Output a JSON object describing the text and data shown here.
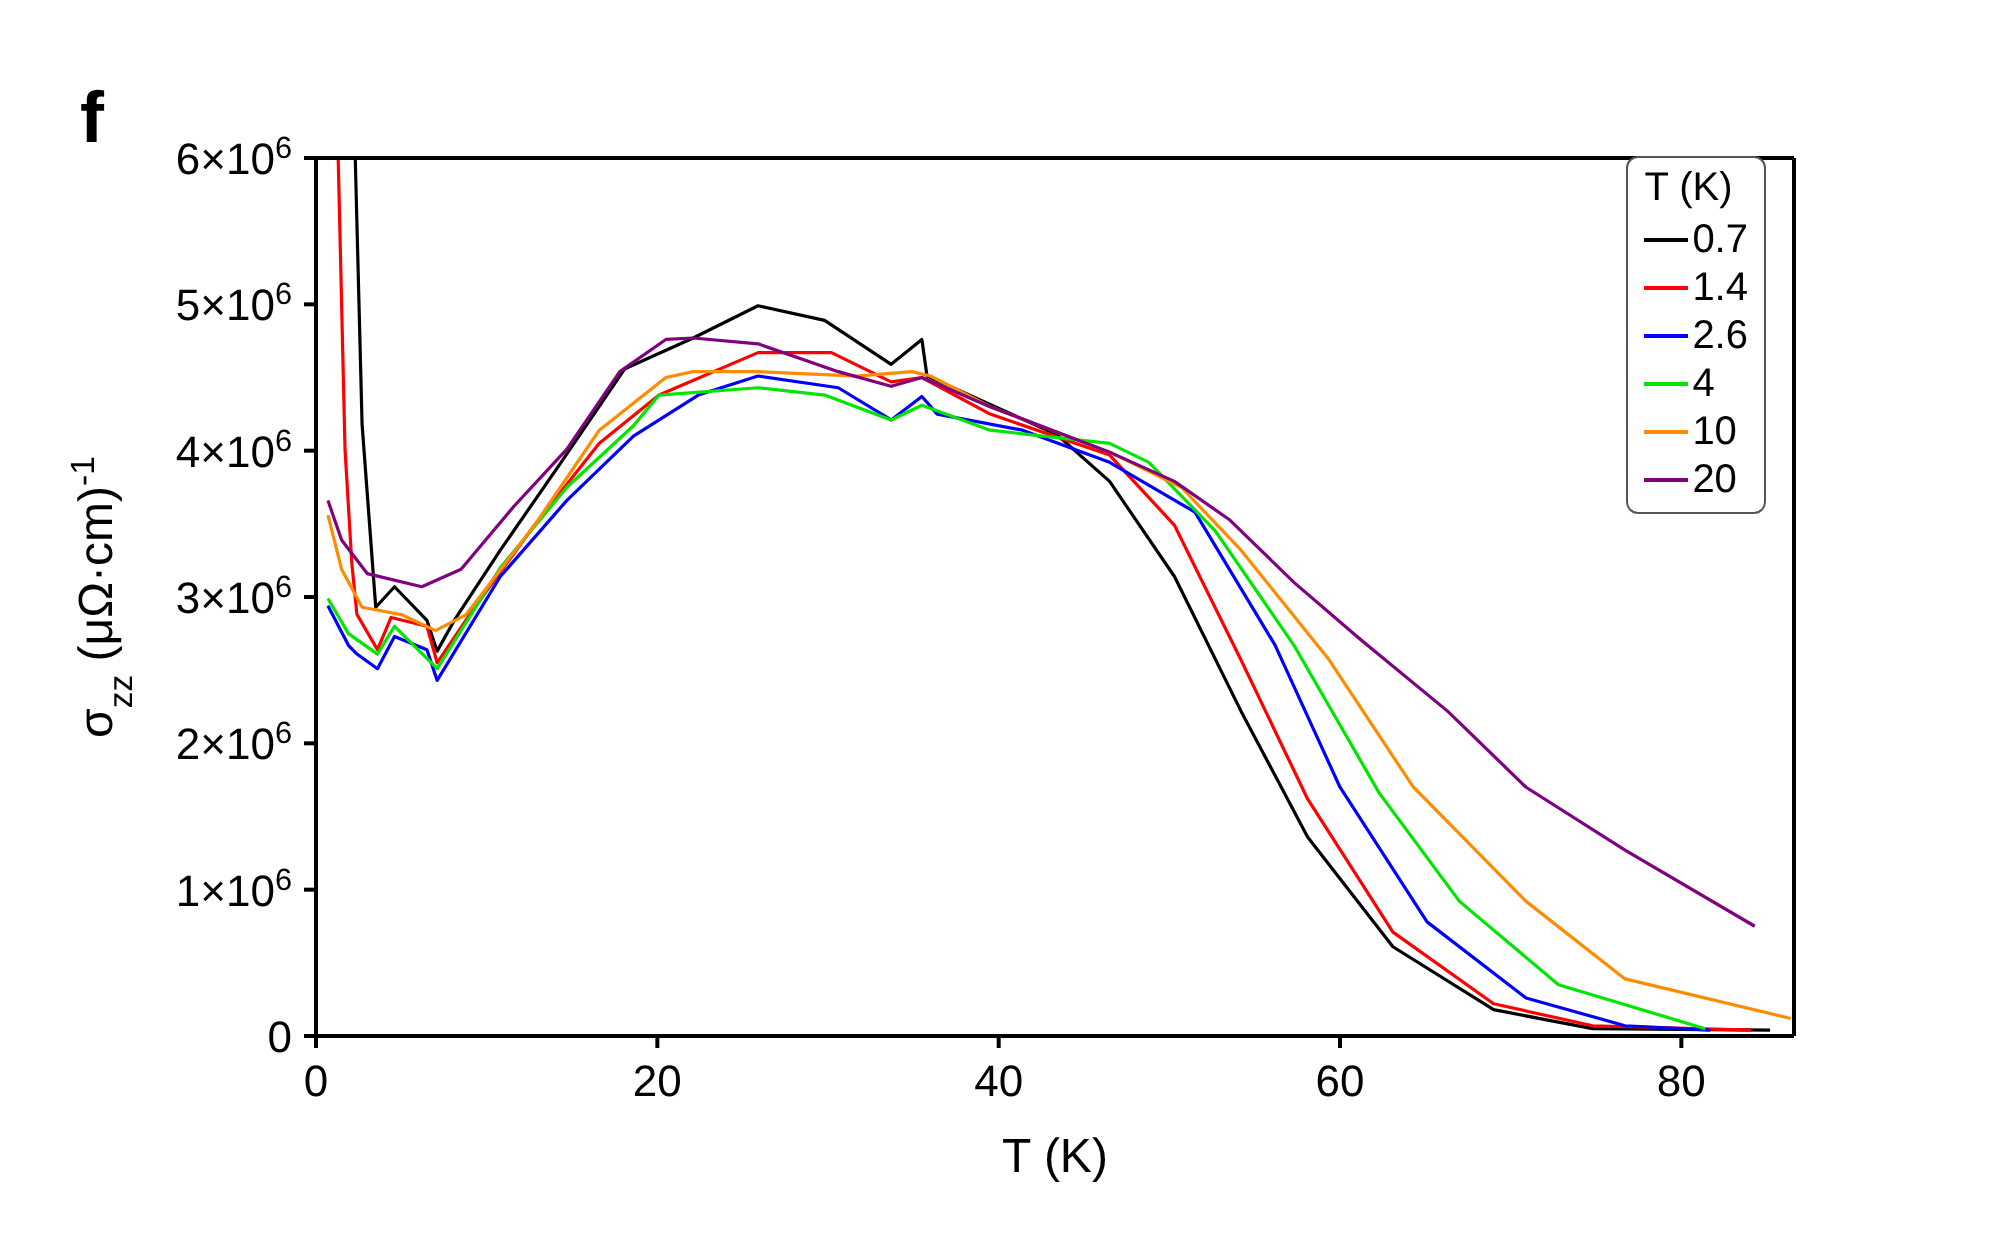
{
  "chart_data": {
    "type": "line",
    "title": "f",
    "xlabel": "T (K)",
    "ylabel": "σ$_{zz}$ (μΩ·cm)$^{-1}$",
    "legend_title": "T (K)",
    "legend": "top right",
    "xlim": [
      0,
      86.6
    ],
    "xticks": [
      0,
      20,
      40,
      60,
      80
    ],
    "ylim": [
      0,
      6000000
    ],
    "yticks": [
      0,
      {
        "value": 1000000,
        "label": "1×10$^{6}$"
      },
      {
        "value": 2000000,
        "label": "2×10$^{6}$"
      },
      {
        "value": 3000000,
        "label": "3×10$^{6}$"
      },
      {
        "value": 4000000,
        "label": "4×10$^{6}$"
      },
      {
        "value": 5000000,
        "label": "5×10$^{6}$"
      },
      {
        "value": 6000000,
        "label": "6×10$^{6}$"
      }
    ],
    "series": [
      {
        "name": "0.7",
        "color": "#000000",
        "x": [
          2.3,
          2.7,
          3.5,
          4.6,
          6.5,
          7.1,
          8.1,
          10.8,
          14.3,
          18.1,
          22.1,
          25.9,
          29.8,
          33.7,
          35.5,
          35.8,
          43.4,
          46.5,
          50.3,
          54.2,
          58.1,
          63.1,
          69,
          74.8,
          85.2
        ],
        "values": [
          6000000,
          4180000,
          2930000,
          3070000,
          2840000,
          2630000,
          2840000,
          3320000,
          3910000,
          4560000,
          4770000,
          4990000,
          4890000,
          4590000,
          4760000,
          4510000,
          4110000,
          3790000,
          3140000,
          2220000,
          1360000,
          610000,
          180000,
          50000,
          40000
        ]
      },
      {
        "name": "1.4",
        "color": "#ff0000",
        "x": [
          1.3,
          1.7,
          2.1,
          2.4,
          3.6,
          4.4,
          6.5,
          7.1,
          9.3,
          12.8,
          16.6,
          20.1,
          25.9,
          30.2,
          33.7,
          35.5,
          39.5,
          46.5,
          50.3,
          54.2,
          58.1,
          63.1,
          69,
          74.8,
          84.1
        ],
        "values": [
          6000000,
          4010000,
          3230000,
          2880000,
          2640000,
          2860000,
          2800000,
          2550000,
          2930000,
          3490000,
          4050000,
          4380000,
          4670000,
          4670000,
          4470000,
          4500000,
          4250000,
          3970000,
          3490000,
          2570000,
          1620000,
          710000,
          220000,
          70000,
          40000
        ]
      },
      {
        "name": "2.6",
        "color": "#0000ff",
        "x": [
          0.7,
          1.9,
          2.4,
          3.6,
          4.6,
          6.5,
          7.1,
          10.8,
          14.7,
          18.6,
          22.4,
          25.9,
          30.6,
          33.7,
          35.5,
          36.4,
          41.4,
          46.5,
          51.5,
          56.2,
          60,
          65.1,
          70.9,
          76.7,
          81.7
        ],
        "values": [
          2940000,
          2670000,
          2610000,
          2510000,
          2730000,
          2640000,
          2430000,
          3140000,
          3660000,
          4100000,
          4380000,
          4510000,
          4430000,
          4210000,
          4370000,
          4250000,
          4140000,
          3920000,
          3580000,
          2670000,
          1700000,
          780000,
          260000,
          70000,
          40000
        ]
      },
      {
        "name": "4",
        "color": "#00e600",
        "x": [
          0.7,
          1.9,
          3.6,
          4.6,
          7.1,
          10.8,
          14.7,
          18.6,
          20.1,
          25.9,
          29.8,
          33.7,
          35.5,
          39.5,
          46.5,
          48.8,
          52.7,
          57.3,
          62.3,
          67,
          72.8,
          81.4
        ],
        "values": [
          2990000,
          2750000,
          2610000,
          2800000,
          2510000,
          3200000,
          3750000,
          4170000,
          4380000,
          4430000,
          4380000,
          4210000,
          4310000,
          4140000,
          4050000,
          3920000,
          3450000,
          2670000,
          1660000,
          920000,
          350000,
          50000
        ]
      },
      {
        "name": "10",
        "color": "#ff8c00",
        "x": [
          0.7,
          1.5,
          2.7,
          5,
          7,
          8.8,
          12.8,
          16.6,
          20.5,
          22.1,
          25.9,
          31.7,
          34.9,
          36,
          39.5,
          46.5,
          50.7,
          54.2,
          59.3,
          64.3,
          70.9,
          76.7,
          86.4
        ],
        "values": [
          3560000,
          3190000,
          2930000,
          2880000,
          2770000,
          2880000,
          3490000,
          4140000,
          4500000,
          4540000,
          4540000,
          4510000,
          4540000,
          4510000,
          4300000,
          3990000,
          3750000,
          3320000,
          2580000,
          1700000,
          920000,
          390000,
          120000
        ]
      },
      {
        "name": "20",
        "color": "#800080",
        "x": [
          0.7,
          1.5,
          3,
          6.2,
          8.5,
          11.6,
          14.7,
          17.8,
          20.5,
          22.1,
          25.9,
          30.6,
          33.7,
          35.5,
          39.5,
          46.5,
          50.3,
          53.5,
          57.3,
          61.2,
          66.3,
          70.9,
          76.7,
          84.3
        ],
        "values": [
          3660000,
          3390000,
          3160000,
          3070000,
          3190000,
          3620000,
          4010000,
          4540000,
          4760000,
          4770000,
          4730000,
          4540000,
          4440000,
          4500000,
          4300000,
          3990000,
          3790000,
          3530000,
          3100000,
          2710000,
          2220000,
          1700000,
          1270000,
          750000
        ]
      }
    ]
  }
}
